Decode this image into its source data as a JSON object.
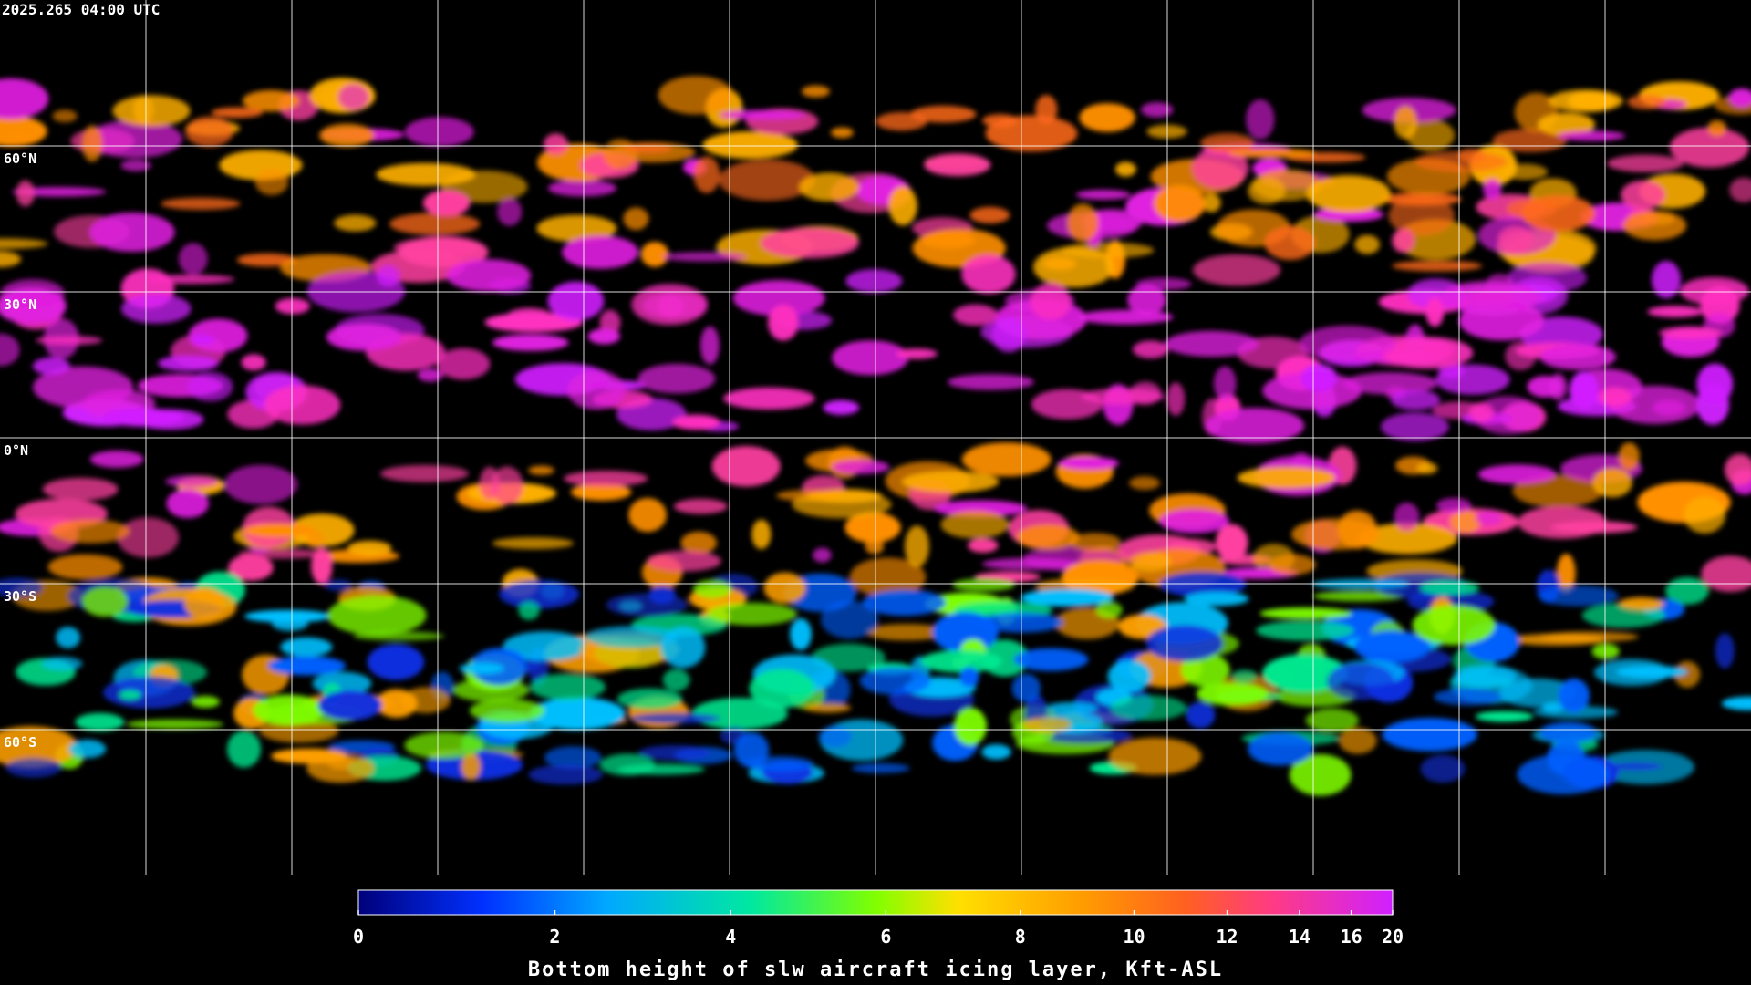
{
  "timestamp": "2025.265 04:00 UTC",
  "lat_labels": [
    "60°N",
    "30°N",
    "0°N",
    "30°S",
    "60°S"
  ],
  "colorbar": {
    "title": "Bottom height of slw aircraft icing layer, Kft-ASL",
    "range": [
      0,
      20
    ],
    "ticks": [
      0,
      2,
      4,
      6,
      8,
      10,
      12,
      14,
      16,
      20
    ]
  }
}
